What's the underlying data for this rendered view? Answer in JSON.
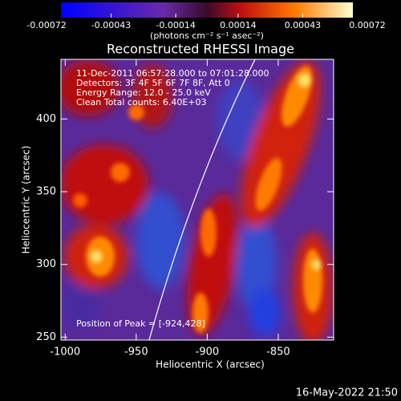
{
  "chart_data": {
    "type": "heatmap",
    "title": "Reconstructed RHESSI Image",
    "x_label": "Heliocentric X (arcsec)",
    "y_label": "Heliocentric Y (arcsec)",
    "xlim": [
      -1003,
      -811
    ],
    "xticks": [
      -1000,
      -950,
      -900,
      -850
    ],
    "ylim": [
      248,
      441
    ],
    "yticks": [
      250,
      300,
      350,
      400
    ],
    "colorbar": {
      "lim": [
        -0.00072,
        0.00072
      ],
      "ticks": [
        -0.00072,
        -0.00043,
        -0.00014,
        0.00014,
        0.00043,
        0.00072
      ],
      "unit": "(photons cm⁻² s⁻¹ asec⁻²)"
    },
    "annotations": [
      "11-Dec-2011 06:57:28.000 to 07:01:28.000",
      "Detectors: 3F 4F 5F 6F 7F 8F, Att 0",
      "Energy Range: 12.0 - 25.0 keV",
      "Clean    Total counts: 6.40E+03"
    ],
    "peak_label": "Position of Peak = [-924,428]",
    "timestamp": "16-May-2022 21:50"
  }
}
